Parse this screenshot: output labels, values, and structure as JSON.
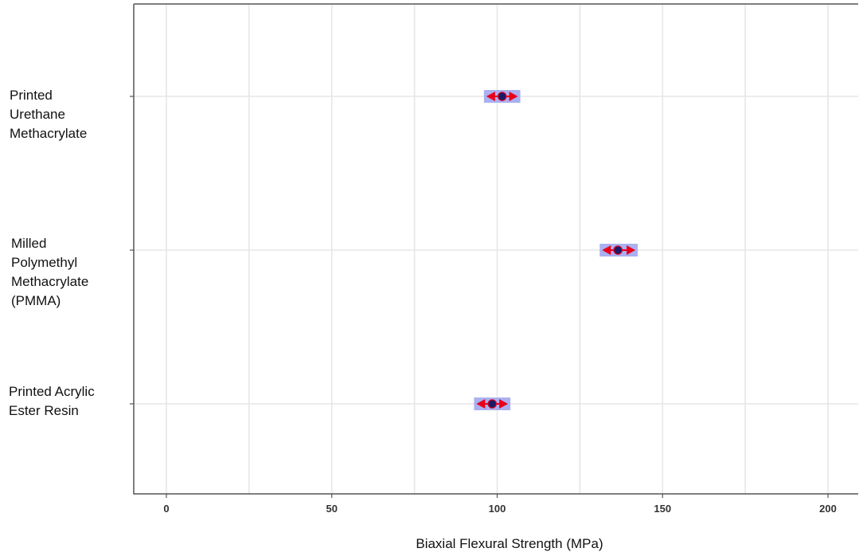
{
  "chart_data": {
    "type": "scatter",
    "title": "",
    "xlabel": "Biaxial Flexural Strength (MPa)",
    "ylabel": "",
    "xlim": [
      -10,
      210
    ],
    "x_ticks": [
      0,
      50,
      100,
      150,
      200
    ],
    "x_tick_labels": [
      "0",
      "50",
      "100",
      "150",
      "200"
    ],
    "grid": true,
    "categories": [
      "Printed\nUrethane\nMethacrylate",
      "Milled\nPolymethyl\nMethacrylate\n(PMMA)",
      "Printed Acrylic\nEster Resin"
    ],
    "series": [
      {
        "mean": 101.5,
        "ci": [
          96,
          107
        ]
      },
      {
        "mean": 136.5,
        "ci": [
          131,
          142.5
        ]
      },
      {
        "mean": 98.5,
        "ci": [
          93,
          104
        ]
      }
    ],
    "colors": {
      "ci_band": "#aab0f0",
      "arrow": "#e8001c",
      "point": "#1a1a66",
      "grid": "#e6e6e6",
      "axis": "#555555"
    }
  }
}
